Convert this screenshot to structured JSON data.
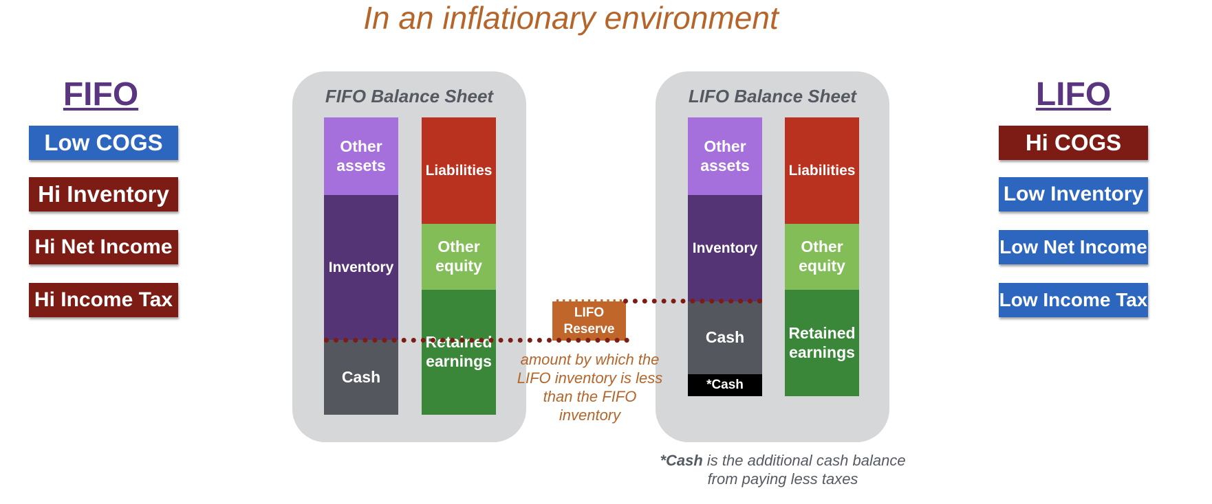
{
  "title": "In an inflationary environment",
  "left": {
    "heading": "FIFO",
    "items": [
      "Low COGS",
      "Hi Inventory",
      "Hi Net Income",
      "Hi Income Tax"
    ]
  },
  "right": {
    "heading": "LIFO",
    "items": [
      "Hi COGS",
      "Low Inventory",
      "Low Net Income",
      "Low Income Tax"
    ]
  },
  "fifo_sheet": {
    "title": "FIFO Balance Sheet",
    "assets": {
      "other": "Other assets",
      "inventory": "Inventory",
      "cash": "Cash"
    },
    "claims": {
      "liabilities": "Liabilities",
      "equity": "Other equity",
      "retained": "Retained earnings"
    }
  },
  "lifo_sheet": {
    "title": "LIFO Balance Sheet",
    "assets": {
      "other": "Other assets",
      "inventory": "Inventory",
      "cash": "Cash",
      "extra_cash": "*Cash"
    },
    "claims": {
      "liabilities": "Liabilities",
      "equity": "Other equity",
      "retained": "Retained earnings"
    }
  },
  "reserve": {
    "label": "LIFO Reserve",
    "note": "amount by which the LIFO inventory is less than the FIFO inventory"
  },
  "footnote": {
    "bold": "*Cash",
    "text": " is the additional cash balance from paying less taxes"
  },
  "colors": {
    "title": "#b5652a",
    "heading": "#5a3580",
    "blue": "#2d66bf",
    "dark_red": "#7c1c14",
    "other_assets": "#a56fdc",
    "inventory": "#553475",
    "cash": "#54575d",
    "liabilities": "#b8321f",
    "other_equity": "#82bd57",
    "retained": "#3a873a",
    "reserve": "#c0662a"
  }
}
